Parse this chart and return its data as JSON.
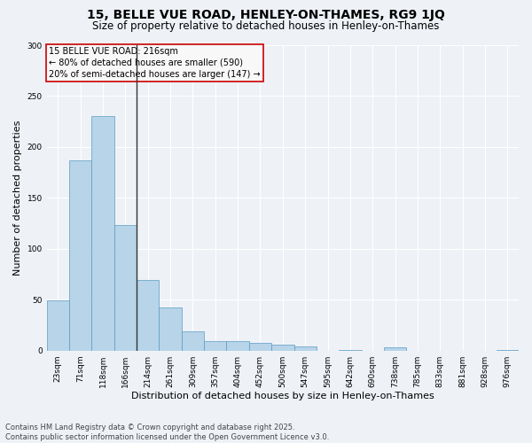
{
  "title": "15, BELLE VUE ROAD, HENLEY-ON-THAMES, RG9 1JQ",
  "subtitle": "Size of property relative to detached houses in Henley-on-Thames",
  "xlabel": "Distribution of detached houses by size in Henley-on-Thames",
  "ylabel": "Number of detached properties",
  "categories": [
    "23sqm",
    "71sqm",
    "118sqm",
    "166sqm",
    "214sqm",
    "261sqm",
    "309sqm",
    "357sqm",
    "404sqm",
    "452sqm",
    "500sqm",
    "547sqm",
    "595sqm",
    "642sqm",
    "690sqm",
    "738sqm",
    "785sqm",
    "833sqm",
    "881sqm",
    "928sqm",
    "976sqm"
  ],
  "values": [
    49,
    187,
    230,
    123,
    69,
    42,
    19,
    9,
    9,
    8,
    6,
    4,
    0,
    1,
    0,
    3,
    0,
    0,
    0,
    0,
    1
  ],
  "bar_color": "#b8d4e8",
  "bar_edge_color": "#5a9bc4",
  "vline_x_idx": 4,
  "vline_color": "#333333",
  "annotation_box_text": "15 BELLE VUE ROAD: 216sqm\n← 80% of detached houses are smaller (590)\n20% of semi-detached houses are larger (147) →",
  "annotation_box_edge_color": "#cc0000",
  "annotation_box_facecolor": "#f8f8f8",
  "ylim": [
    0,
    300
  ],
  "yticks": [
    0,
    50,
    100,
    150,
    200,
    250,
    300
  ],
  "background_color": "#eef2f7",
  "grid_color": "#ffffff",
  "footer": "Contains HM Land Registry data © Crown copyright and database right 2025.\nContains public sector information licensed under the Open Government Licence v3.0.",
  "title_fontsize": 10,
  "subtitle_fontsize": 8.5,
  "ylabel_fontsize": 8,
  "xlabel_fontsize": 8,
  "tick_fontsize": 6.5,
  "annotation_fontsize": 7,
  "footer_fontsize": 6
}
